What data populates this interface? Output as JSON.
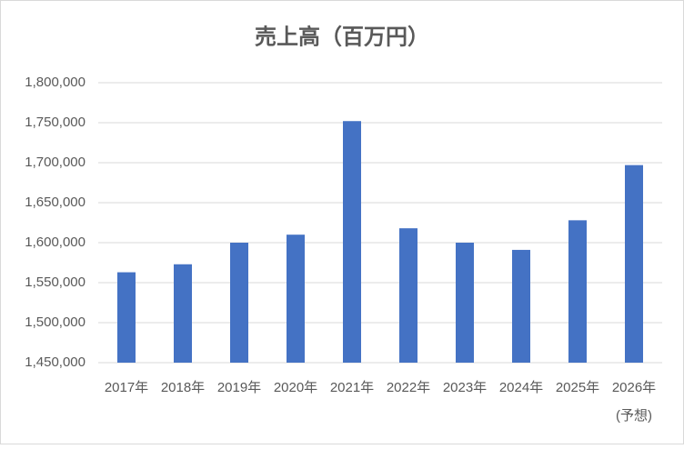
{
  "chart_data": {
    "type": "bar",
    "title": "売上高（百万円）",
    "categories": [
      "2017年",
      "2018年",
      "2019年",
      "2020年",
      "2021年",
      "2022年",
      "2023年",
      "2024年",
      "2025年",
      "2026年\n(予想)"
    ],
    "values": [
      1563000,
      1573000,
      1600000,
      1610000,
      1752000,
      1618000,
      1600000,
      1591000,
      1628000,
      1697000
    ],
    "color": "#4472c4",
    "ylim": [
      1450000,
      1800000
    ],
    "yticks": [
      {
        "value": 1450000,
        "label": "1,450,000"
      },
      {
        "value": 1500000,
        "label": "1,500,000"
      },
      {
        "value": 1550000,
        "label": "1,550,000"
      },
      {
        "value": 1600000,
        "label": "1,600,000"
      },
      {
        "value": 1650000,
        "label": "1,650,000"
      },
      {
        "value": 1700000,
        "label": "1,700,000"
      },
      {
        "value": 1750000,
        "label": "1,750,000"
      },
      {
        "value": 1800000,
        "label": "1,800,000"
      }
    ],
    "grid": true
  }
}
